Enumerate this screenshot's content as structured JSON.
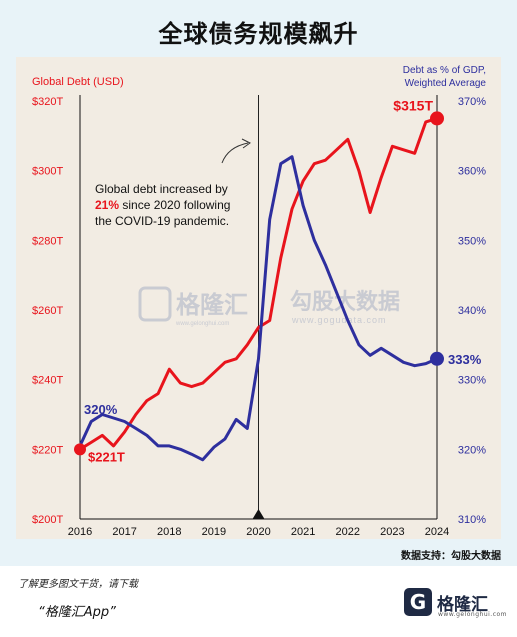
{
  "page_title": "全球债务规模飙升",
  "source_note": "数据支持：勾股大数据",
  "footer": {
    "line1": "了解更多图文干货，请下载",
    "line2": "“格隆汇App”",
    "logo_mark": "G",
    "logo_text": "格隆汇",
    "logo_url": "www.gelonghui.com"
  },
  "watermark": {
    "left_text": "格隆汇",
    "left_url": "www.gelonghui.com",
    "right_text": "勾股大数据",
    "right_url": "www.gogudata.com"
  },
  "colors": {
    "debt": "#e8141c",
    "ratio": "#2e2f9e",
    "card": "#f2ece3",
    "page": "#e8f3f8"
  },
  "chart_data": {
    "type": "line",
    "ylabel_left": "Global Debt (USD)",
    "ylabel_right_line1": "Debt as % of GDP,",
    "ylabel_right_line2": "Weighted Average",
    "x_ticks": [
      "2016",
      "2017",
      "2018",
      "2019",
      "2020",
      "2021",
      "2022",
      "2023",
      "2024"
    ],
    "xlim": [
      2016,
      2024
    ],
    "left_axis": {
      "ticks": [
        "$200T",
        "$220T",
        "$240T",
        "$260T",
        "$280T",
        "$300T",
        "$320T"
      ],
      "ylim": [
        200,
        320
      ]
    },
    "right_axis": {
      "ticks": [
        "310%",
        "320%",
        "330%",
        "340%",
        "350%",
        "360%",
        "370%"
      ],
      "ylim": [
        310,
        370
      ]
    },
    "annotation": {
      "line1": "Global debt increased by",
      "highlight": "21%",
      "line2_rest": " since 2020 following",
      "line3": "the COVID-19 pandemic."
    },
    "series": [
      {
        "name": "Global Debt (USD)",
        "axis": "left",
        "color": "#e8141c",
        "start_label": "$221T",
        "end_label": "$315T",
        "x": [
          2016.0,
          2016.25,
          2016.5,
          2016.75,
          2017.0,
          2017.25,
          2017.5,
          2017.75,
          2018.0,
          2018.25,
          2018.5,
          2018.75,
          2019.0,
          2019.25,
          2019.5,
          2019.75,
          2020.0,
          2020.25,
          2020.5,
          2020.75,
          2021.0,
          2021.25,
          2021.5,
          2021.75,
          2022.0,
          2022.25,
          2022.5,
          2022.75,
          2023.0,
          2023.25,
          2023.5,
          2023.75,
          2024.0
        ],
        "values": [
          220,
          222,
          224,
          221,
          225,
          230,
          234,
          236,
          243,
          239,
          238,
          239,
          242,
          245,
          246,
          250,
          255,
          257,
          275,
          289,
          297,
          302,
          303,
          306,
          309,
          300,
          288,
          298,
          307,
          306,
          305,
          314,
          315
        ]
      },
      {
        "name": "Debt as % of GDP, Weighted Average",
        "axis": "right",
        "color": "#2e2f9e",
        "start_label": "320%",
        "end_label": "333%",
        "x": [
          2016.0,
          2016.25,
          2016.5,
          2016.75,
          2017.0,
          2017.25,
          2017.5,
          2017.75,
          2018.0,
          2018.25,
          2018.5,
          2018.75,
          2019.0,
          2019.25,
          2019.5,
          2019.75,
          2020.0,
          2020.25,
          2020.5,
          2020.75,
          2021.0,
          2021.25,
          2021.5,
          2021.75,
          2022.0,
          2022.25,
          2022.5,
          2022.75,
          2023.0,
          2023.25,
          2023.5,
          2023.75,
          2024.0
        ],
        "values": [
          320.5,
          324,
          325,
          324.5,
          324,
          323,
          322,
          320.5,
          320.5,
          320,
          319.3,
          318.5,
          320.3,
          321.5,
          324.3,
          323,
          333,
          353,
          361,
          362,
          355,
          350,
          346.5,
          342.5,
          338.5,
          335,
          333.5,
          334.5,
          333.5,
          332.5,
          332,
          332.3,
          333
        ]
      }
    ]
  }
}
